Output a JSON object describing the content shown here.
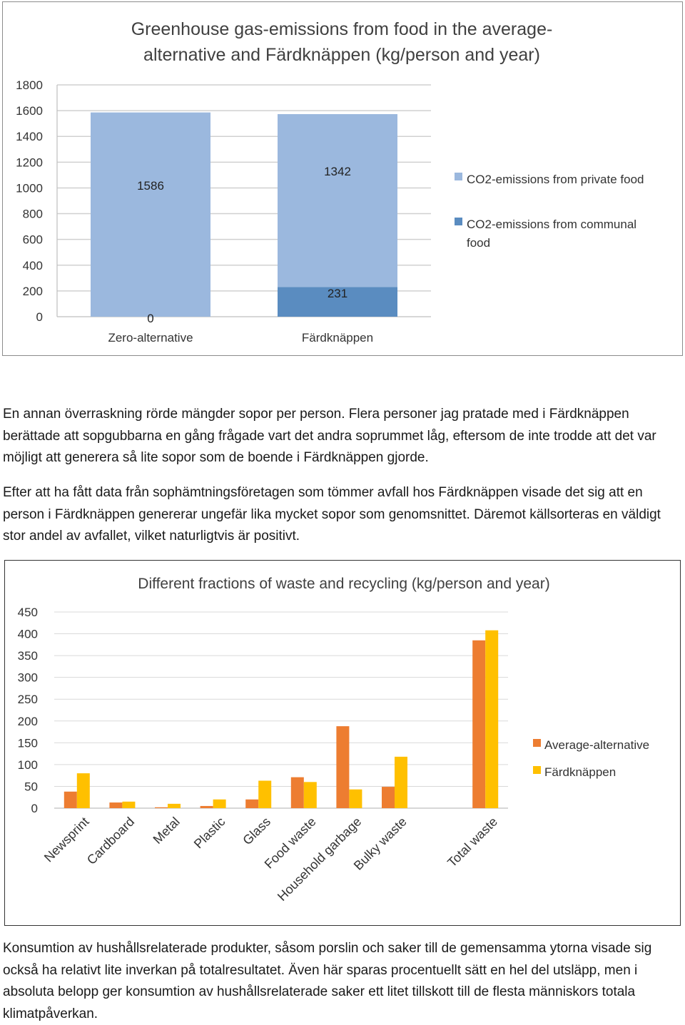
{
  "charts": {
    "emissions": {
      "title_lines": [
        "Greenhouse gas-emissions from food in the average-",
        "alternative and Färdknäppen (kg/person and year)"
      ],
      "legend": [
        {
          "label_lines": [
            "CO2-emissions from private food"
          ],
          "color": "#9bb8de"
        },
        {
          "label_lines": [
            "CO2-emissions from communal",
            "food"
          ],
          "color": "#5a8cc0"
        }
      ]
    },
    "waste": {
      "title": "Different fractions of waste and recycling (kg/person and year)",
      "legend": [
        {
          "label": "Average-alternative",
          "color": "#ed7d31"
        },
        {
          "label": "Färdknäppen",
          "color": "#ffc000"
        }
      ]
    }
  },
  "chart_data": [
    {
      "type": "bar",
      "stacked": true,
      "title": "Greenhouse gas-emissions from food in the average-alternative and Färdknäppen (kg/person and year)",
      "categories": [
        "Zero-alternative",
        "Färdknäppen"
      ],
      "series": [
        {
          "name": "CO2-emissions from communal food",
          "values": [
            0,
            231
          ],
          "color": "#5a8cc0"
        },
        {
          "name": "CO2-emissions from private food",
          "values": [
            1586,
            1342
          ],
          "color": "#9bb8de"
        }
      ],
      "ylim": [
        0,
        1800
      ],
      "yticks": [
        0,
        200,
        400,
        600,
        800,
        1000,
        1200,
        1400,
        1600,
        1800
      ],
      "grid": true,
      "legend_position": "right"
    },
    {
      "type": "bar",
      "title": "Different fractions of waste and recycling (kg/person and year)",
      "categories": [
        "Newsprint",
        "Cardboard",
        "Metal",
        "Plastic",
        "Glass",
        "Food waste",
        "Household garbage",
        "Bulky waste",
        "",
        "Total waste"
      ],
      "series": [
        {
          "name": "Average-alternative",
          "values": [
            38,
            13,
            2,
            5,
            20,
            71,
            188,
            49,
            null,
            385
          ],
          "color": "#ed7d31"
        },
        {
          "name": "Färdknäppen",
          "values": [
            80,
            15,
            10,
            20,
            63,
            60,
            43,
            118,
            null,
            408
          ],
          "color": "#ffc000"
        }
      ],
      "ylim": [
        0,
        450
      ],
      "yticks": [
        0,
        50,
        100,
        150,
        200,
        250,
        300,
        350,
        400,
        450
      ],
      "grid": true,
      "legend_position": "right"
    }
  ],
  "text": {
    "para1": "En annan överraskning rörde mängder sopor per person. Flera personer jag pratade med i Färdknäppen berättade att sopgubbarna en gång frågade vart det andra soprummet låg, eftersom de inte trodde att det var möjligt att generera så lite sopor som de boende i Färdknäppen gjorde.",
    "para2": "Efter att ha fått data från sophämtningsföretagen som tömmer avfall hos Färdknäppen visade det sig att en person i Färdknäppen genererar ungefär lika mycket sopor som genomsnittet. Däremot källsorteras en väldigt stor andel av avfallet, vilket naturligtvis är positivt.",
    "para3": "Konsumtion av hushållsrelaterade produkter, såsom porslin och saker till de gemensamma ytorna visade sig också ha relativt lite inverkan på totalresultatet. Även här sparas procentuellt sätt en hel del utsläpp, men i absoluta belopp ger konsumtion av hushållsrelaterade saker ett litet tillskott till de flesta människors totala klimatpåverkan."
  }
}
